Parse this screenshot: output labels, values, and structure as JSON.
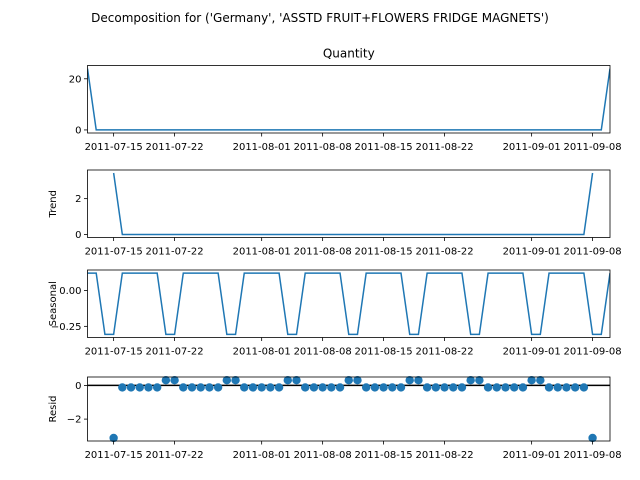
{
  "figure": {
    "suptitle": "Decomposition for ('Germany', 'ASSTD FRUIT+FLOWERS FRIDGE MAGNETS')"
  },
  "colors": {
    "series": "#1f77b4",
    "axis": "#000000",
    "zero_line": "#000000",
    "background": "#ffffff"
  },
  "chart_data": [
    {
      "type": "line",
      "title": "Quantity",
      "xlabel": "",
      "ylabel": "",
      "x": [
        "2011-07-12",
        "2011-07-13",
        "2011-07-14",
        "2011-07-15",
        "2011-07-16",
        "2011-07-17",
        "2011-07-18",
        "2011-07-19",
        "2011-07-20",
        "2011-07-21",
        "2011-07-22",
        "2011-07-23",
        "2011-07-24",
        "2011-07-25",
        "2011-07-26",
        "2011-07-27",
        "2011-07-28",
        "2011-07-29",
        "2011-07-30",
        "2011-07-31",
        "2011-08-01",
        "2011-08-02",
        "2011-08-03",
        "2011-08-04",
        "2011-08-05",
        "2011-08-06",
        "2011-08-07",
        "2011-08-08",
        "2011-08-09",
        "2011-08-10",
        "2011-08-11",
        "2011-08-12",
        "2011-08-13",
        "2011-08-14",
        "2011-08-15",
        "2011-08-16",
        "2011-08-17",
        "2011-08-18",
        "2011-08-19",
        "2011-08-20",
        "2011-08-21",
        "2011-08-22",
        "2011-08-23",
        "2011-08-24",
        "2011-08-25",
        "2011-08-26",
        "2011-08-27",
        "2011-08-28",
        "2011-08-29",
        "2011-08-30",
        "2011-08-31",
        "2011-09-01",
        "2011-09-02",
        "2011-09-03",
        "2011-09-04",
        "2011-09-05",
        "2011-09-06",
        "2011-09-07",
        "2011-09-08",
        "2011-09-09",
        "2011-09-10"
      ],
      "values": [
        24,
        0,
        0,
        0,
        0,
        0,
        0,
        0,
        0,
        0,
        0,
        0,
        0,
        0,
        0,
        0,
        0,
        0,
        0,
        0,
        0,
        0,
        0,
        0,
        0,
        0,
        0,
        0,
        0,
        0,
        0,
        0,
        0,
        0,
        0,
        0,
        0,
        0,
        0,
        0,
        0,
        0,
        0,
        0,
        0,
        0,
        0,
        0,
        0,
        0,
        0,
        0,
        0,
        0,
        0,
        0,
        0,
        0,
        0,
        0,
        24
      ],
      "yticks": [
        0,
        20
      ],
      "ylim": [
        -1.2,
        25.2
      ],
      "xlim": [
        "2011-07-12",
        "2011-09-10"
      ],
      "xticks": [
        "2011-07-15",
        "2011-07-22",
        "2011-08-01",
        "2011-08-08",
        "2011-08-15",
        "2011-08-22",
        "2011-09-01",
        "2011-09-08"
      ],
      "grid": false
    },
    {
      "type": "line",
      "title": "",
      "xlabel": "",
      "ylabel": "Trend",
      "x": [
        "2011-07-15",
        "2011-07-16",
        "2011-07-17",
        "2011-07-18",
        "2011-07-19",
        "2011-07-20",
        "2011-07-21",
        "2011-07-22",
        "2011-07-23",
        "2011-07-24",
        "2011-07-25",
        "2011-07-26",
        "2011-07-27",
        "2011-07-28",
        "2011-07-29",
        "2011-07-30",
        "2011-07-31",
        "2011-08-01",
        "2011-08-02",
        "2011-08-03",
        "2011-08-04",
        "2011-08-05",
        "2011-08-06",
        "2011-08-07",
        "2011-08-08",
        "2011-08-09",
        "2011-08-10",
        "2011-08-11",
        "2011-08-12",
        "2011-08-13",
        "2011-08-14",
        "2011-08-15",
        "2011-08-16",
        "2011-08-17",
        "2011-08-18",
        "2011-08-19",
        "2011-08-20",
        "2011-08-21",
        "2011-08-22",
        "2011-08-23",
        "2011-08-24",
        "2011-08-25",
        "2011-08-26",
        "2011-08-27",
        "2011-08-28",
        "2011-08-29",
        "2011-08-30",
        "2011-08-31",
        "2011-09-01",
        "2011-09-02",
        "2011-09-03",
        "2011-09-04",
        "2011-09-05",
        "2011-09-06",
        "2011-09-07",
        "2011-09-08"
      ],
      "values": [
        3.43,
        0,
        0,
        0,
        0,
        0,
        0,
        0,
        0,
        0,
        0,
        0,
        0,
        0,
        0,
        0,
        0,
        0,
        0,
        0,
        0,
        0,
        0,
        0,
        0,
        0,
        0,
        0,
        0,
        0,
        0,
        0,
        0,
        0,
        0,
        0,
        0,
        0,
        0,
        0,
        0,
        0,
        0,
        0,
        0,
        0,
        0,
        0,
        0,
        0,
        0,
        0,
        0,
        0,
        0,
        3.43
      ],
      "yticks": [
        0,
        2
      ],
      "ylim": [
        -0.17,
        3.6
      ],
      "xlim": [
        "2011-07-12",
        "2011-09-10"
      ],
      "xticks": [
        "2011-07-15",
        "2011-07-22",
        "2011-08-01",
        "2011-08-08",
        "2011-08-15",
        "2011-08-22",
        "2011-09-01",
        "2011-09-08"
      ],
      "grid": false
    },
    {
      "type": "line",
      "title": "",
      "xlabel": "",
      "ylabel": "Seasonal",
      "x": [
        "2011-07-12",
        "2011-07-13",
        "2011-07-14",
        "2011-07-15",
        "2011-07-16",
        "2011-07-17",
        "2011-07-18",
        "2011-07-19",
        "2011-07-20",
        "2011-07-21",
        "2011-07-22",
        "2011-07-23",
        "2011-07-24",
        "2011-07-25",
        "2011-07-26",
        "2011-07-27",
        "2011-07-28",
        "2011-07-29",
        "2011-07-30",
        "2011-07-31",
        "2011-08-01",
        "2011-08-02",
        "2011-08-03",
        "2011-08-04",
        "2011-08-05",
        "2011-08-06",
        "2011-08-07",
        "2011-08-08",
        "2011-08-09",
        "2011-08-10",
        "2011-08-11",
        "2011-08-12",
        "2011-08-13",
        "2011-08-14",
        "2011-08-15",
        "2011-08-16",
        "2011-08-17",
        "2011-08-18",
        "2011-08-19",
        "2011-08-20",
        "2011-08-21",
        "2011-08-22",
        "2011-08-23",
        "2011-08-24",
        "2011-08-25",
        "2011-08-26",
        "2011-08-27",
        "2011-08-28",
        "2011-08-29",
        "2011-08-30",
        "2011-08-31",
        "2011-09-01",
        "2011-09-02",
        "2011-09-03",
        "2011-09-04",
        "2011-09-05",
        "2011-09-06",
        "2011-09-07",
        "2011-09-08",
        "2011-09-09",
        "2011-09-10"
      ],
      "values": [
        0.122,
        0.122,
        -0.306,
        -0.306,
        0.122,
        0.122,
        0.122,
        0.122,
        0.122,
        -0.306,
        -0.306,
        0.122,
        0.122,
        0.122,
        0.122,
        0.122,
        -0.306,
        -0.306,
        0.122,
        0.122,
        0.122,
        0.122,
        0.122,
        -0.306,
        -0.306,
        0.122,
        0.122,
        0.122,
        0.122,
        0.122,
        -0.306,
        -0.306,
        0.122,
        0.122,
        0.122,
        0.122,
        0.122,
        -0.306,
        -0.306,
        0.122,
        0.122,
        0.122,
        0.122,
        0.122,
        -0.306,
        -0.306,
        0.122,
        0.122,
        0.122,
        0.122,
        0.122,
        -0.306,
        -0.306,
        0.122,
        0.122,
        0.122,
        0.122,
        0.122,
        -0.306,
        -0.306,
        0.122
      ],
      "yticks": [
        -0.25,
        0.0
      ],
      "ytick_labels": [
        "−0.25",
        "0.00"
      ],
      "ylim": [
        -0.328,
        0.144
      ],
      "xlim": [
        "2011-07-12",
        "2011-09-10"
      ],
      "xticks": [
        "2011-07-15",
        "2011-07-22",
        "2011-08-01",
        "2011-08-08",
        "2011-08-15",
        "2011-08-22",
        "2011-09-01",
        "2011-09-08"
      ],
      "grid": false
    },
    {
      "type": "scatter",
      "title": "",
      "xlabel": "",
      "ylabel": "Resid",
      "x": [
        "2011-07-15",
        "2011-07-16",
        "2011-07-17",
        "2011-07-18",
        "2011-07-19",
        "2011-07-20",
        "2011-07-21",
        "2011-07-22",
        "2011-07-23",
        "2011-07-24",
        "2011-07-25",
        "2011-07-26",
        "2011-07-27",
        "2011-07-28",
        "2011-07-29",
        "2011-07-30",
        "2011-07-31",
        "2011-08-01",
        "2011-08-02",
        "2011-08-03",
        "2011-08-04",
        "2011-08-05",
        "2011-08-06",
        "2011-08-07",
        "2011-08-08",
        "2011-08-09",
        "2011-08-10",
        "2011-08-11",
        "2011-08-12",
        "2011-08-13",
        "2011-08-14",
        "2011-08-15",
        "2011-08-16",
        "2011-08-17",
        "2011-08-18",
        "2011-08-19",
        "2011-08-20",
        "2011-08-21",
        "2011-08-22",
        "2011-08-23",
        "2011-08-24",
        "2011-08-25",
        "2011-08-26",
        "2011-08-27",
        "2011-08-28",
        "2011-08-29",
        "2011-08-30",
        "2011-08-31",
        "2011-09-01",
        "2011-09-02",
        "2011-09-03",
        "2011-09-04",
        "2011-09-05",
        "2011-09-06",
        "2011-09-07",
        "2011-09-08"
      ],
      "values": [
        -3.12,
        -0.12,
        -0.12,
        -0.12,
        -0.12,
        -0.12,
        0.31,
        0.31,
        -0.12,
        -0.12,
        -0.12,
        -0.12,
        -0.12,
        0.31,
        0.31,
        -0.12,
        -0.12,
        -0.12,
        -0.12,
        -0.12,
        0.31,
        0.31,
        -0.12,
        -0.12,
        -0.12,
        -0.12,
        -0.12,
        0.31,
        0.31,
        -0.12,
        -0.12,
        -0.12,
        -0.12,
        -0.12,
        0.31,
        0.31,
        -0.12,
        -0.12,
        -0.12,
        -0.12,
        -0.12,
        0.31,
        0.31,
        -0.12,
        -0.12,
        -0.12,
        -0.12,
        -0.12,
        0.31,
        0.31,
        -0.12,
        -0.12,
        -0.12,
        -0.12,
        -0.12,
        -3.12
      ],
      "baseline": 0,
      "yticks": [
        -2,
        0
      ],
      "ytick_labels": [
        "−2",
        "0"
      ],
      "ylim": [
        -3.3,
        0.5
      ],
      "xlim": [
        "2011-07-12",
        "2011-09-10"
      ],
      "xticks": [
        "2011-07-15",
        "2011-07-22",
        "2011-08-01",
        "2011-08-08",
        "2011-08-15",
        "2011-08-22",
        "2011-09-01",
        "2011-09-08"
      ],
      "grid": false
    }
  ]
}
